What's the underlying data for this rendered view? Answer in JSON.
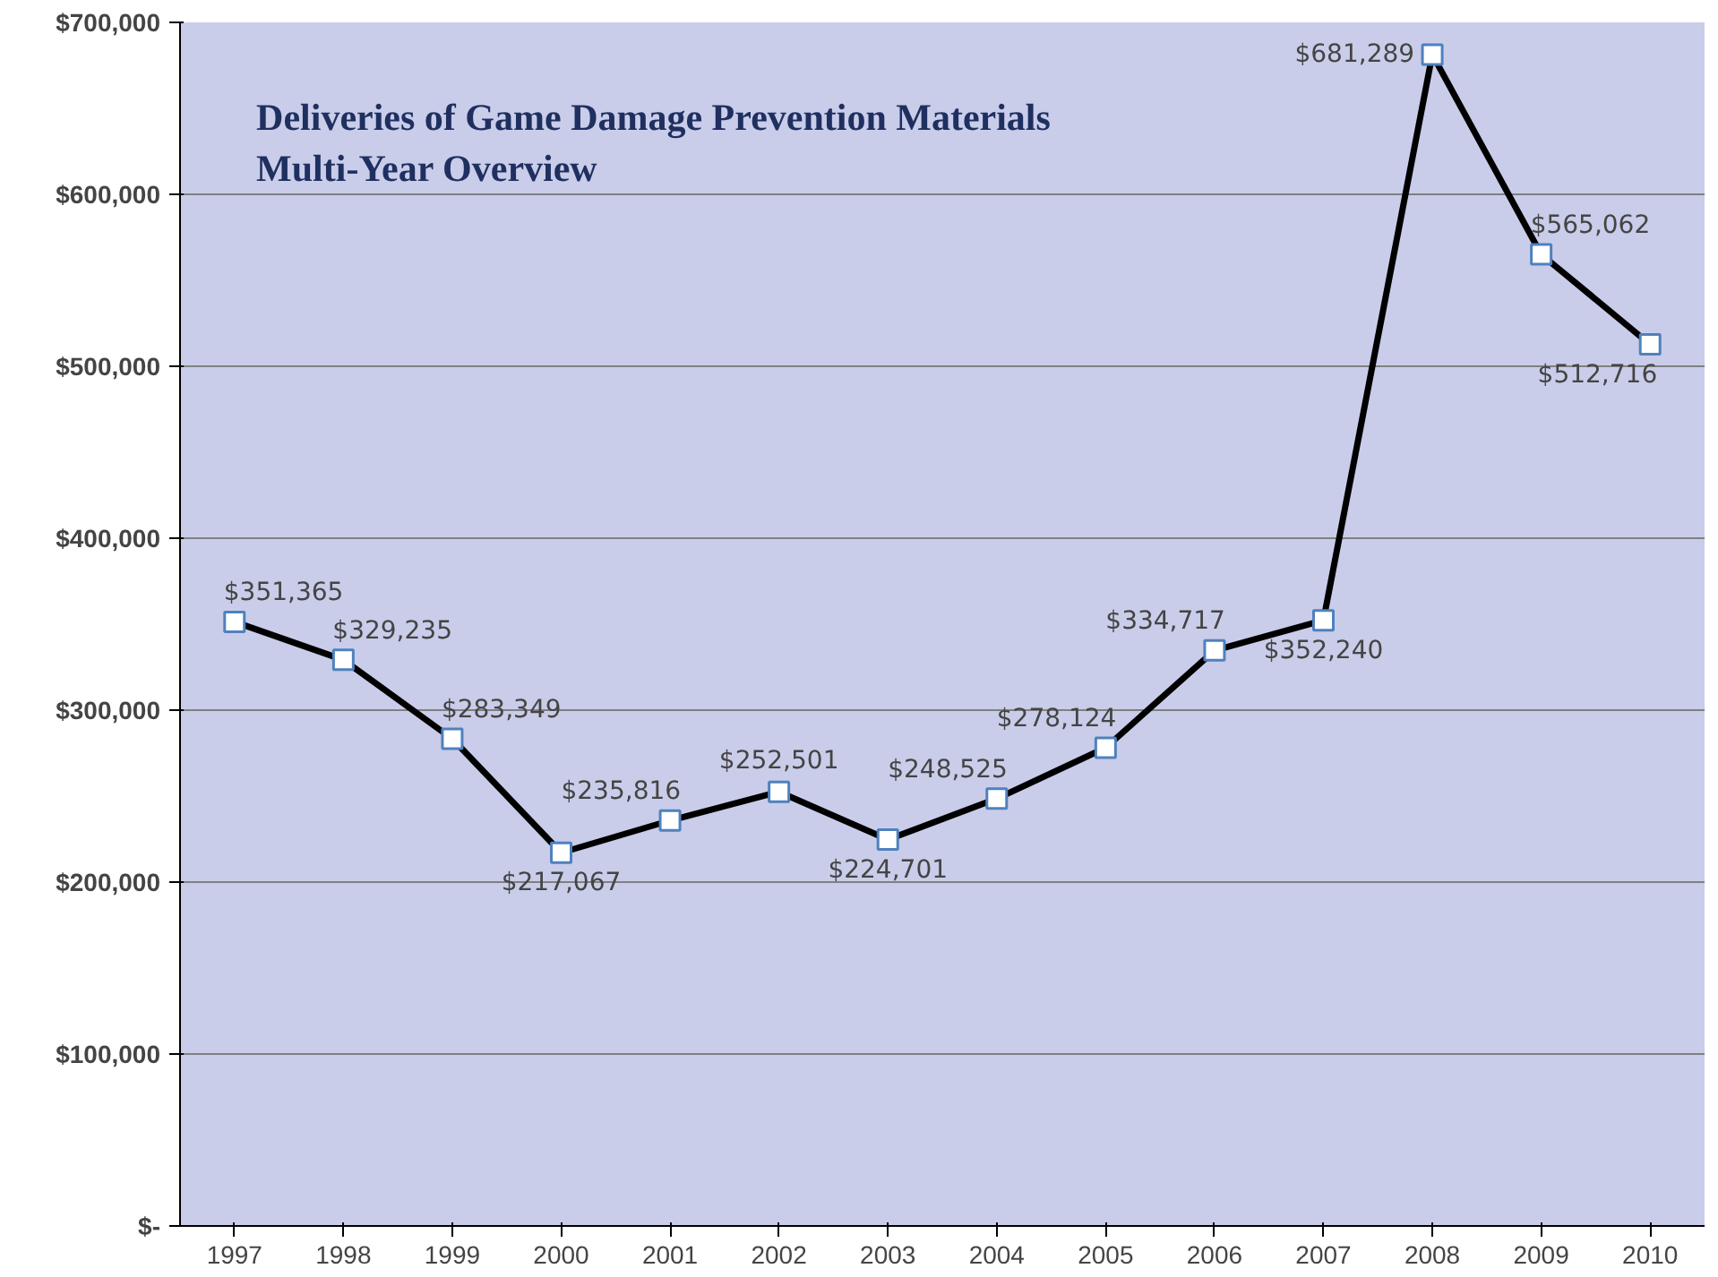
{
  "chart_data": {
    "type": "line",
    "title": "Deliveries of Game Damage Prevention Materials\nMulti-Year Overview",
    "categories": [
      "1997",
      "1998",
      "1999",
      "2000",
      "2001",
      "2002",
      "2003",
      "2004",
      "2005",
      "2006",
      "2007",
      "2008",
      "2009",
      "2010"
    ],
    "series": [
      {
        "color": "#000000",
        "values": [
          351365,
          329235,
          283349,
          217067,
          235816,
          252501,
          224701,
          248525,
          278124,
          334717,
          352240,
          681289,
          565062,
          512716
        ],
        "value_labels": [
          "$351,365",
          "$329,235",
          "$283,349",
          "$217,067",
          "$235,816",
          "$252,501",
          "$224,701",
          "$248,525",
          "$278,124",
          "$334,717",
          "$352,240",
          "$681,289",
          "$565,062",
          "$512,716"
        ]
      }
    ],
    "ylim": [
      0,
      700000
    ],
    "yticks": [
      {
        "value": 0,
        "label": "$-"
      },
      {
        "value": 100000,
        "label": "$100,000"
      },
      {
        "value": 200000,
        "label": "$200,000"
      },
      {
        "value": 300000,
        "label": "$300,000"
      },
      {
        "value": 400000,
        "label": "$400,000"
      },
      {
        "value": 500000,
        "label": "$500,000"
      },
      {
        "value": 600000,
        "label": "$600,000"
      },
      {
        "value": 700000,
        "label": "$700,000"
      }
    ],
    "grid": "y",
    "marker": "square",
    "line_style": "solid"
  }
}
